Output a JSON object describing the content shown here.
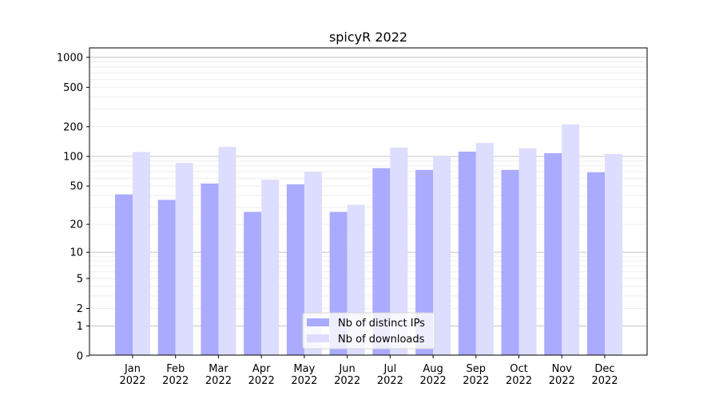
{
  "chart_data": {
    "type": "bar",
    "title": "spicyR 2022",
    "xlabel": "",
    "ylabel": "",
    "yscale": "log(1+y)",
    "ylim": [
      0,
      1200
    ],
    "yticks": [
      0,
      1,
      2,
      5,
      10,
      20,
      50,
      100,
      200,
      500,
      1000
    ],
    "grid": true,
    "legend_position": "bottom-center",
    "categories": [
      "Jan\n2022",
      "Feb\n2022",
      "Mar\n2022",
      "Apr\n2022",
      "May\n2022",
      "Jun\n2022",
      "Jul\n2022",
      "Aug\n2022",
      "Sep\n2022",
      "Oct\n2022",
      "Nov\n2022",
      "Dec\n2022"
    ],
    "series": [
      {
        "name": "Nb of distinct IPs",
        "color": "#aaaaff",
        "values": [
          41,
          36,
          53,
          27,
          52,
          27,
          76,
          73,
          112,
          73,
          108,
          69
        ]
      },
      {
        "name": "Nb of downloads",
        "color": "#ddddff",
        "values": [
          111,
          86,
          125,
          58,
          70,
          32,
          123,
          100,
          137,
          121,
          211,
          106
        ]
      }
    ]
  }
}
